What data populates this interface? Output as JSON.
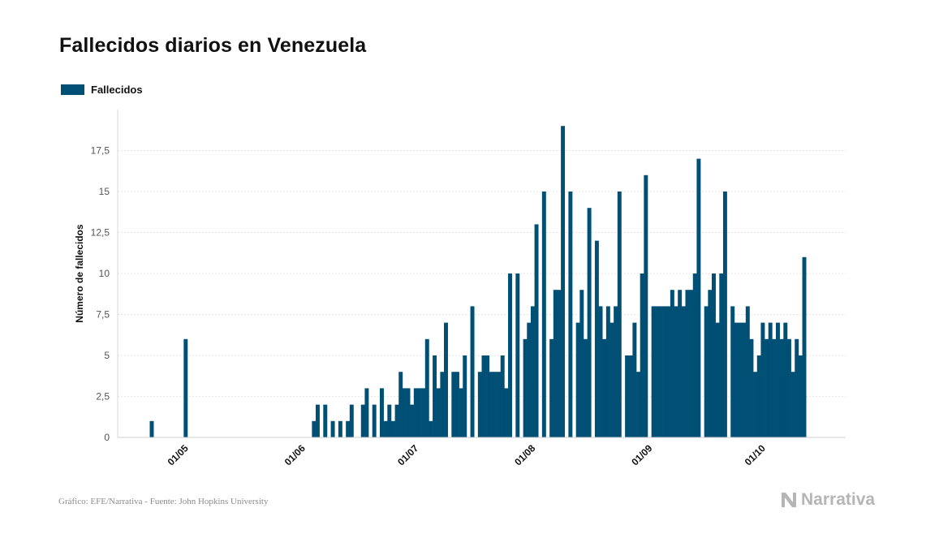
{
  "title": "Fallecidos diarios en Venezuela",
  "legend": {
    "label": "Fallecidos",
    "color": "#004f74"
  },
  "source": "Gráfico: EFE/Narrativa - Fuente: John Hopkins University",
  "brand": "Narrativa",
  "chart_data": {
    "type": "bar",
    "title": "Fallecidos diarios en Venezuela",
    "xlabel": "",
    "ylabel": "Número de fallecidos",
    "ylim": [
      0,
      20
    ],
    "yticks": [
      0,
      2.5,
      5,
      7.5,
      10,
      12.5,
      15,
      17.5
    ],
    "ytick_labels": [
      "0",
      "2,5",
      "5",
      "7,5",
      "10",
      "12,5",
      "15",
      "17,5"
    ],
    "xlim": [
      "2020-04-13",
      "2020-10-23"
    ],
    "xticks": [
      {
        "date": "2020-05-01",
        "label": "01/05"
      },
      {
        "date": "2020-06-01",
        "label": "01/06"
      },
      {
        "date": "2020-07-01",
        "label": "01/07"
      },
      {
        "date": "2020-08-01",
        "label": "01/08"
      },
      {
        "date": "2020-09-01",
        "label": "01/09"
      },
      {
        "date": "2020-10-01",
        "label": "01/10"
      }
    ],
    "grid": true,
    "legend_position": "top-left",
    "series": [
      {
        "name": "Fallecidos",
        "color": "#004f74",
        "start_date": "2020-04-22",
        "values": [
          1,
          0,
          0,
          0,
          0,
          0,
          0,
          0,
          0,
          6,
          0,
          0,
          0,
          0,
          0,
          0,
          0,
          0,
          0,
          0,
          0,
          0,
          0,
          0,
          0,
          0,
          0,
          0,
          0,
          0,
          0,
          0,
          0,
          0,
          0,
          0,
          0,
          0,
          0,
          0,
          0,
          0,
          0,
          1,
          2,
          0,
          2,
          0,
          1,
          0,
          1,
          0,
          1,
          2,
          0,
          0,
          2,
          3,
          0,
          2,
          0,
          3,
          1,
          2,
          1,
          2,
          4,
          3,
          3,
          2,
          3,
          3,
          3,
          6,
          1,
          5,
          3,
          4,
          7,
          0,
          4,
          4,
          3,
          5,
          0,
          8,
          0,
          4,
          5,
          5,
          4,
          4,
          4,
          5,
          3,
          10,
          0,
          10,
          0,
          6,
          7,
          8,
          13,
          0,
          15,
          0,
          6,
          9,
          9,
          19,
          0,
          15,
          0,
          7,
          9,
          6,
          14,
          0,
          12,
          8,
          6,
          8,
          7,
          8,
          15,
          0,
          5,
          5,
          7,
          4,
          10,
          16,
          0,
          8,
          8,
          8,
          8,
          8,
          9,
          8,
          9,
          8,
          9,
          9,
          10,
          17,
          0,
          8,
          9,
          10,
          7,
          10,
          15,
          0,
          8,
          7,
          7,
          7,
          8,
          6,
          4,
          5,
          7,
          6,
          7,
          6,
          7,
          6,
          7,
          6,
          4,
          6,
          5,
          11
        ]
      }
    ]
  }
}
